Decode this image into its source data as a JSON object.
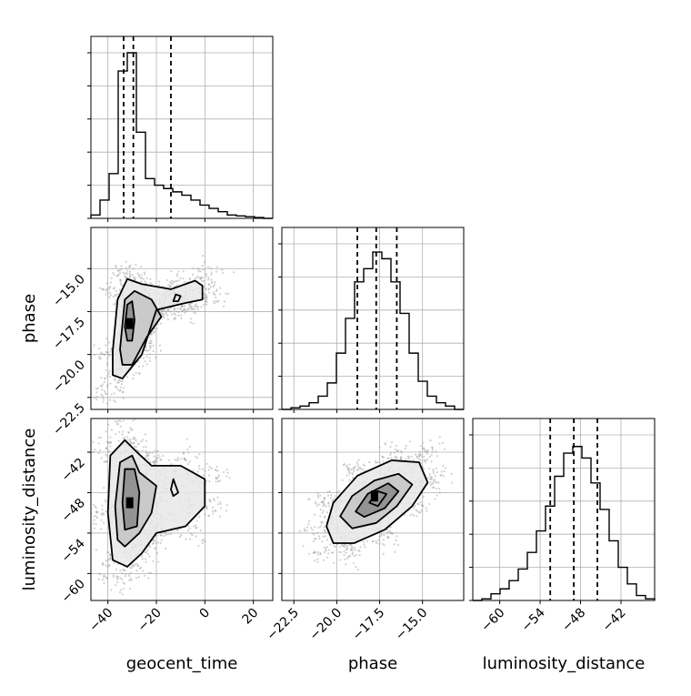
{
  "chart_data": {
    "type": "corner",
    "parameters": [
      "geocent_time",
      "phase",
      "luminosity_distance"
    ],
    "labels": {
      "geocent_time": "geocent_time",
      "phase": "phase",
      "luminosity_distance": "luminosity_distance"
    },
    "ranges": {
      "geocent_time": [
        -47,
        28
      ],
      "phase": [
        -23.2,
        -12.6
      ],
      "luminosity_distance": [
        -64,
        -37
      ]
    },
    "ticks": {
      "geocent_time": [
        -40,
        -20,
        0,
        20
      ],
      "phase": [
        -22.5,
        -20.0,
        -17.5,
        -15.0
      ],
      "luminosity_distance": [
        -60,
        -54,
        -48,
        -42
      ]
    },
    "tick_labels": {
      "geocent_time": [
        "−40",
        "−20",
        "0",
        "20"
      ],
      "phase": [
        "−22.5",
        "−20.0",
        "−17.5",
        "−15.0"
      ],
      "luminosity_distance": [
        "−60",
        "−54",
        "−48",
        "−42"
      ]
    },
    "quantiles": {
      "geocent_time": [
        -33.5,
        -29.5,
        -14
      ],
      "phase": [
        -18.8,
        -17.7,
        -16.5
      ],
      "luminosity_distance": [
        -52.5,
        -49.0,
        -45.5
      ]
    },
    "histograms": {
      "geocent_time": {
        "edges": [
          -47,
          -43.25,
          -39.5,
          -35.75,
          -32,
          -28.25,
          -24.5,
          -20.75,
          -17,
          -13.25,
          -9.5,
          -5.75,
          -2,
          1.75,
          5.5,
          9.25,
          13,
          16.75,
          20.5,
          24.25,
          28
        ],
        "counts": [
          0.02,
          0.11,
          0.27,
          0.89,
          1.0,
          0.52,
          0.24,
          0.2,
          0.18,
          0.16,
          0.14,
          0.11,
          0.08,
          0.06,
          0.04,
          0.02,
          0.015,
          0.01,
          0.005,
          0
        ]
      },
      "phase": {
        "edges": [
          -23.2,
          -22.67,
          -22.14,
          -21.61,
          -21.08,
          -20.55,
          -20.02,
          -19.49,
          -18.96,
          -18.43,
          -17.9,
          -17.37,
          -16.84,
          -16.31,
          -15.78,
          -15.25,
          -14.72,
          -14.19,
          -13.66,
          -13.13,
          -12.6
        ],
        "counts": [
          0.0,
          0.01,
          0.02,
          0.04,
          0.08,
          0.16,
          0.34,
          0.55,
          0.77,
          0.85,
          0.95,
          0.91,
          0.77,
          0.58,
          0.34,
          0.17,
          0.08,
          0.04,
          0.02,
          0.0
        ]
      },
      "luminosity_distance": {
        "edges": [
          -64,
          -62.65,
          -61.3,
          -59.95,
          -58.6,
          -57.25,
          -55.9,
          -54.55,
          -53.2,
          -51.85,
          -50.5,
          -49.15,
          -47.8,
          -46.45,
          -45.1,
          -43.75,
          -42.4,
          -41.05,
          -39.7,
          -38.35,
          -37
        ],
        "counts": [
          0.0,
          0.01,
          0.04,
          0.07,
          0.12,
          0.19,
          0.29,
          0.42,
          0.57,
          0.75,
          0.89,
          0.93,
          0.86,
          0.71,
          0.55,
          0.36,
          0.2,
          0.1,
          0.03,
          0.01
        ]
      }
    },
    "pairs": [
      {
        "x": "geocent_time",
        "y": "phase",
        "density_peak": [
          -31,
          -18.2
        ],
        "contours": [
          [
            [
              -38,
              -19.8
            ],
            [
              -36,
              -16.8
            ],
            [
              -32,
              -15.6
            ],
            [
              -26,
              -15.9
            ],
            [
              -14,
              -16.2
            ],
            [
              -4,
              -15.7
            ],
            [
              -1,
              -16.0
            ],
            [
              -1,
              -16.8
            ],
            [
              -8,
              -17.0
            ],
            [
              -20,
              -17.4
            ],
            [
              -26,
              -20.0
            ],
            [
              -34,
              -21.4
            ],
            [
              -38,
              -21.2
            ]
          ],
          [
            [
              -35,
              -19.7
            ],
            [
              -33,
              -16.8
            ],
            [
              -29,
              -16.3
            ],
            [
              -22,
              -16.8
            ],
            [
              -18,
              -17.8
            ],
            [
              -24,
              -19.0
            ],
            [
              -30,
              -20.6
            ],
            [
              -34,
              -20.6
            ]
          ],
          [
            [
              -33,
              -18.4
            ],
            [
              -32,
              -17.1
            ],
            [
              -30,
              -16.9
            ],
            [
              -29,
              -18.0
            ],
            [
              -30,
              -19.2
            ],
            [
              -32,
              -19.2
            ]
          ],
          [
            [
              -13,
              -16.9
            ],
            [
              -12,
              -16.5
            ],
            [
              -10,
              -16.6
            ],
            [
              -11,
              -16.9
            ]
          ]
        ]
      },
      {
        "x": "geocent_time",
        "y": "luminosity_distance",
        "density_peak": [
          -31,
          -49.5
        ],
        "contours": [
          [
            [
              -40,
              -51
            ],
            [
              -39,
              -42.5
            ],
            [
              -33,
              -40.2
            ],
            [
              -28,
              -42
            ],
            [
              -22,
              -44
            ],
            [
              -10,
              -44
            ],
            [
              0,
              -46
            ],
            [
              0,
              -50
            ],
            [
              -8,
              -53
            ],
            [
              -20,
              -54
            ],
            [
              -26,
              -57
            ],
            [
              -32,
              -59
            ],
            [
              -38,
              -58
            ]
          ],
          [
            [
              -37,
              -50
            ],
            [
              -35,
              -43.5
            ],
            [
              -30,
              -42.5
            ],
            [
              -27,
              -45
            ],
            [
              -20,
              -47
            ],
            [
              -22,
              -51
            ],
            [
              -27,
              -54
            ],
            [
              -33,
              -56
            ],
            [
              -36,
              -55
            ]
          ],
          [
            [
              -34,
              -49.5
            ],
            [
              -33,
              -44.5
            ],
            [
              -29,
              -44.5
            ],
            [
              -27,
              -48
            ],
            [
              -28,
              -53
            ],
            [
              -33,
              -53.5
            ]
          ],
          [
            [
              -14,
              -47.5
            ],
            [
              -13,
              -46
            ],
            [
              -11,
              -48
            ],
            [
              -13,
              -48.5
            ]
          ]
        ]
      },
      {
        "x": "phase",
        "y": "luminosity_distance",
        "density_peak": [
          -17.8,
          -48.5
        ],
        "contours": [
          [
            [
              -20.6,
              -53
            ],
            [
              -20.2,
              -49.5
            ],
            [
              -18.8,
              -45.5
            ],
            [
              -16.8,
              -43.2
            ],
            [
              -15.2,
              -43.5
            ],
            [
              -14.7,
              -46.5
            ],
            [
              -15.6,
              -50
            ],
            [
              -17.2,
              -53.5
            ],
            [
              -19,
              -55.5
            ],
            [
              -20.2,
              -55.5
            ]
          ],
          [
            [
              -19.8,
              -51.5
            ],
            [
              -19.1,
              -48.5
            ],
            [
              -17.8,
              -46.2
            ],
            [
              -16.4,
              -45.2
            ],
            [
              -15.6,
              -46.8
            ],
            [
              -16.5,
              -50
            ],
            [
              -17.7,
              -52.5
            ],
            [
              -19.1,
              -53.3
            ]
          ],
          [
            [
              -18.9,
              -50.8
            ],
            [
              -18.2,
              -48.2
            ],
            [
              -17.0,
              -46.6
            ],
            [
              -16.4,
              -47.8
            ],
            [
              -17.2,
              -50.3
            ],
            [
              -18.4,
              -51.6
            ]
          ],
          [
            [
              -18.1,
              -49.5
            ],
            [
              -17.6,
              -47.8
            ],
            [
              -17.1,
              -48.2
            ],
            [
              -17.6,
              -50
            ]
          ]
        ]
      }
    ]
  }
}
